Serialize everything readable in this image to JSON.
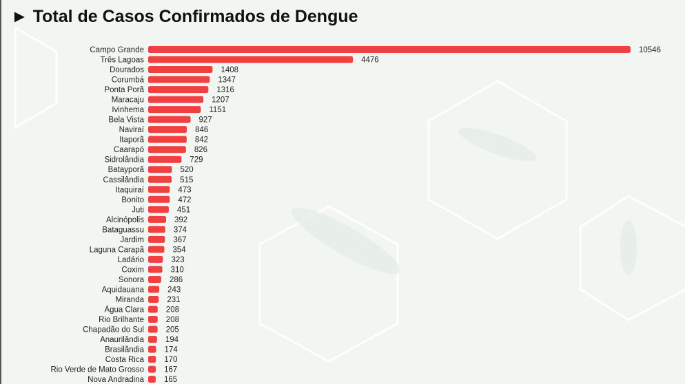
{
  "title": "► Total de Casos Confirmados de Dengue",
  "colors": {
    "bar": "#f04040",
    "background": "#f2f6f3"
  },
  "chart_data": {
    "type": "bar",
    "orientation": "horizontal",
    "title": "► Total de Casos Confirmados de Dengue",
    "categories": [
      "Campo Grande",
      "Três Lagoas",
      "Dourados",
      "Corumbá",
      "Ponta Porã",
      "Maracaju",
      "Ivinhema",
      "Bela Vista",
      "Naviraí",
      "Itaporã",
      "Caarapó",
      "Sidrolândia",
      "Batayporã",
      "Cassilândia",
      "Itaquiraí",
      "Bonito",
      "Juti",
      "Alcinópolis",
      "Bataguassu",
      "Jardim",
      "Laguna Carapã",
      "Ladário",
      "Coxim",
      "Sonora",
      "Aquidauana",
      "Miranda",
      "Água Clara",
      "Rio Brilhante",
      "Chapadão do Sul",
      "Anaurilândia",
      "Brasilândia",
      "Costa Rica",
      "Rio Verde de Mato Grosso",
      "Nova Andradina"
    ],
    "values": [
      10546,
      4476,
      1408,
      1347,
      1316,
      1207,
      1151,
      927,
      846,
      842,
      826,
      729,
      520,
      515,
      473,
      472,
      451,
      392,
      374,
      367,
      354,
      323,
      310,
      286,
      243,
      231,
      208,
      208,
      205,
      194,
      174,
      170,
      167,
      165
    ],
    "data_labels": true,
    "grid": false,
    "xlim": [
      0,
      10546
    ]
  }
}
